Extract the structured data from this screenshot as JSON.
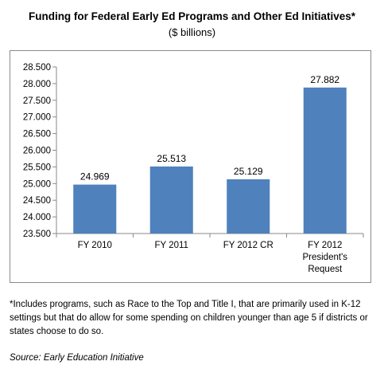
{
  "chart_data": {
    "type": "bar",
    "title": "Funding for Federal Early Ed Programs and Other Ed Initiatives*",
    "subtitle": "($ billions)",
    "categories": [
      [
        "FY 2010"
      ],
      [
        "FY 2011"
      ],
      [
        "FY 2012 CR"
      ],
      [
        "FY 2012",
        "President's",
        "Request"
      ]
    ],
    "values": [
      24.969,
      25.513,
      25.129,
      27.882
    ],
    "value_labels": [
      "24.969",
      "25.513",
      "25.129",
      "27.882"
    ],
    "ylim": [
      23.5,
      28.5
    ],
    "yticks": [
      23.5,
      24.0,
      24.5,
      25.0,
      25.5,
      26.0,
      26.5,
      27.0,
      27.5,
      28.0,
      28.5
    ],
    "ytick_labels": [
      "23.500",
      "24.000",
      "24.500",
      "25.000",
      "25.500",
      "26.000",
      "26.500",
      "27.000",
      "27.500",
      "28.000",
      "28.500"
    ],
    "xlabel": "",
    "ylabel": "",
    "grid": false,
    "legend": "none",
    "bar_color": "#4f81bd"
  },
  "footnote": "*Includes programs, such as Race to the Top and Title I, that are primarily used in K-12 settings but that do allow for some spending on children younger than age 5 if districts or states choose to do so.",
  "source": "Source: Early Education Initiative"
}
